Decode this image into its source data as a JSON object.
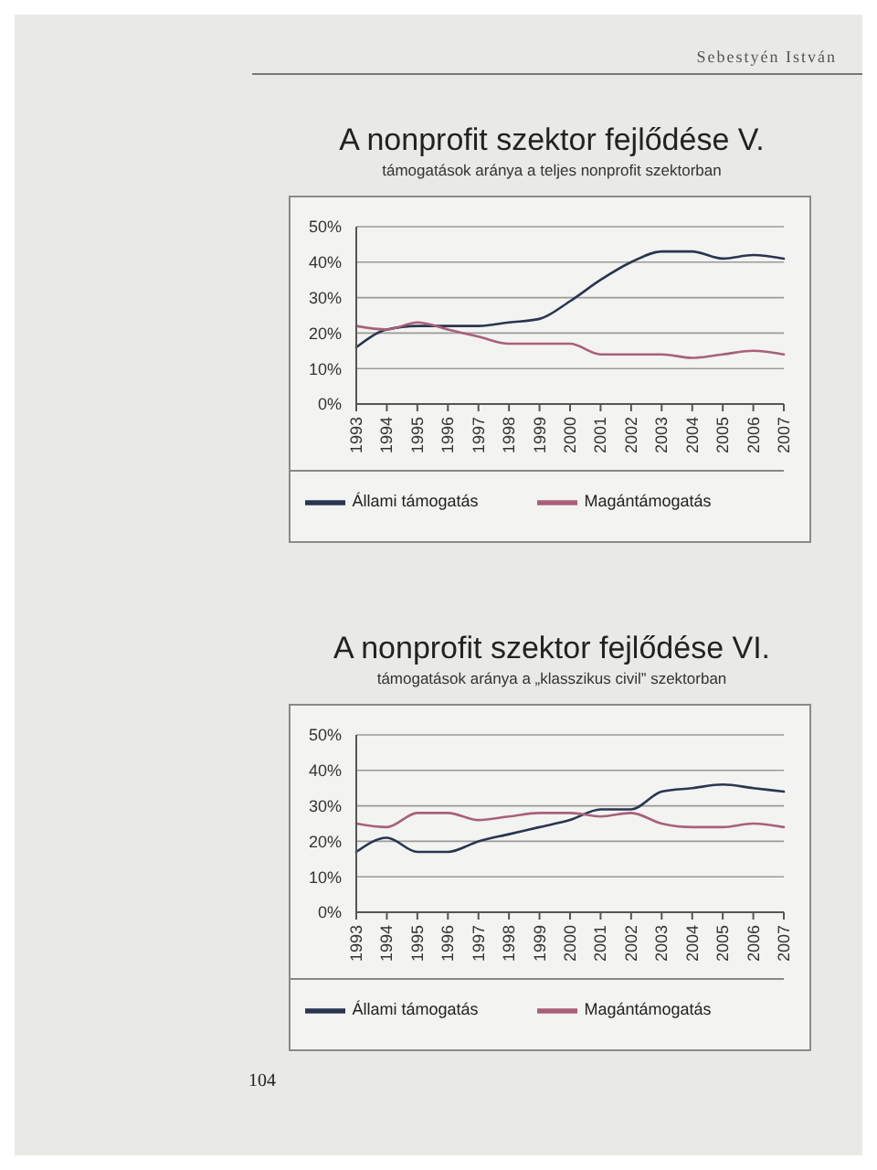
{
  "chart_data": [
    {
      "type": "line",
      "title": "A nonprofit szektor fejlődése V.",
      "subtitle": "támogatások aránya a teljes nonprofit szektorban",
      "annotations": [
        "Sebestyén István"
      ],
      "categories": [
        "1993",
        "1994",
        "1995",
        "1996",
        "1997",
        "1998",
        "1999",
        "2000",
        "2001",
        "2002",
        "2003",
        "2004",
        "2005",
        "2006",
        "2007"
      ],
      "series": [
        {
          "name": "Állami támogatás",
          "color": "#2a3550",
          "values": [
            16,
            21,
            22,
            22,
            22,
            23,
            24,
            29,
            35,
            40,
            43,
            43,
            41,
            42,
            41
          ]
        },
        {
          "name": "Magántámogatás",
          "color": "#a8607a",
          "values": [
            22,
            21,
            23,
            21,
            19,
            17,
            17,
            17,
            14,
            14,
            14,
            13,
            14,
            15,
            14
          ]
        }
      ],
      "ylim": [
        0,
        50
      ],
      "yticks": [
        {
          "value": 0,
          "label": "0%"
        },
        {
          "value": 10,
          "label": "10%"
        },
        {
          "value": 20,
          "label": "20%"
        },
        {
          "value": 30,
          "label": "30%"
        },
        {
          "value": 40,
          "label": "40%"
        },
        {
          "value": 50,
          "label": "50%"
        }
      ],
      "grid": "y",
      "legend": "bottom",
      "marker": "none",
      "line_style": "solid"
    },
    {
      "type": "line",
      "title": "A nonprofit szektor fejlődése VI.",
      "subtitle": "támogatások aránya a „klasszikus civil” szektorban",
      "annotations": [
        "104"
      ],
      "categories": [
        "1993",
        "1994",
        "1995",
        "1996",
        "1997",
        "1998",
        "1999",
        "2000",
        "2001",
        "2002",
        "2003",
        "2004",
        "2005",
        "2006",
        "2007"
      ],
      "series": [
        {
          "name": "Állami támogatás",
          "color": "#2a3550",
          "values": [
            17,
            21,
            17,
            17,
            20,
            22,
            24,
            26,
            29,
            29,
            34,
            35,
            36,
            35,
            34
          ]
        },
        {
          "name": "Magántámogatás",
          "color": "#a8607a",
          "values": [
            25,
            24,
            28,
            28,
            26,
            27,
            28,
            28,
            27,
            28,
            25,
            24,
            24,
            25,
            24
          ]
        }
      ],
      "ylim": [
        0,
        50
      ],
      "yticks": [
        {
          "value": 0,
          "label": "0%"
        },
        {
          "value": 10,
          "label": "10%"
        },
        {
          "value": 20,
          "label": "20%"
        },
        {
          "value": 30,
          "label": "30%"
        },
        {
          "value": 40,
          "label": "40%"
        },
        {
          "value": 50,
          "label": "50%"
        }
      ],
      "grid": "y",
      "legend": "bottom",
      "marker": "none",
      "line_style": "solid"
    }
  ]
}
